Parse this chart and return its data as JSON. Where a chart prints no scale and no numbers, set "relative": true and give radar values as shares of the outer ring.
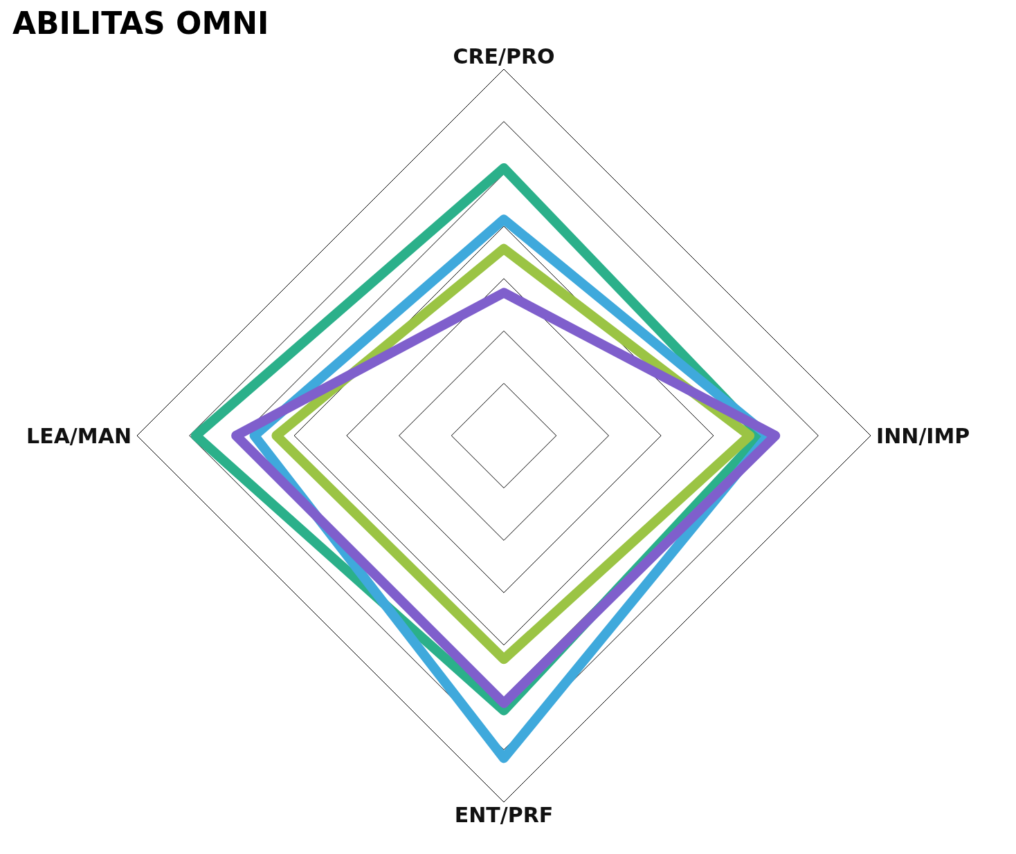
{
  "chart_data": {
    "type": "radar",
    "title": "ABILITAS OMNI",
    "categories": [
      "CRE/PRO",
      "INN/IMP",
      "ENT/PRF",
      "LEA/MAN"
    ],
    "relative": true,
    "grid": true,
    "series": [
      {
        "color": "#2bb08a",
        "values": [
          0.73,
          0.7,
          0.75,
          0.84
        ]
      },
      {
        "color": "#3fa9dc",
        "values": [
          0.59,
          0.72,
          0.88,
          0.68
        ]
      },
      {
        "color": "#9bc444",
        "values": [
          0.51,
          0.67,
          0.61,
          0.62
        ]
      },
      {
        "color": "#7f5fcc",
        "values": [
          0.39,
          0.74,
          0.73,
          0.73
        ]
      }
    ]
  }
}
